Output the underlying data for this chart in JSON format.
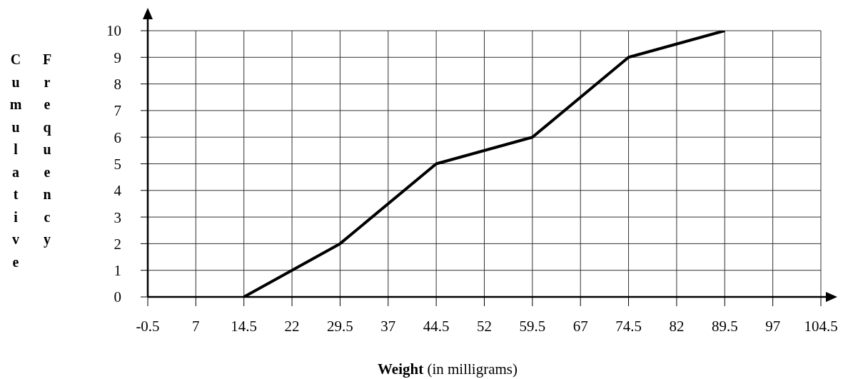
{
  "chart_data": {
    "type": "line",
    "xlabel": "Weight (in milligrams)",
    "ylabel": "Cumulative Frequency",
    "x": [
      14.5,
      29.5,
      44.5,
      59.5,
      74.5,
      89.5
    ],
    "series": [
      {
        "color": "#000000",
        "values": [
          0,
          2,
          5,
          6,
          9,
          10
        ]
      }
    ],
    "xlim": [
      -0.5,
      104.5
    ],
    "xticks": [
      -0.5,
      7,
      14.5,
      22,
      29.5,
      37,
      44.5,
      52,
      59.5,
      67,
      74.5,
      82,
      89.5,
      97,
      104.5
    ],
    "ylim": [
      0,
      10
    ],
    "yticks": [
      0,
      1,
      2,
      3,
      4,
      5,
      6,
      7,
      8,
      9,
      10
    ],
    "grid": true,
    "marker": "none",
    "line_style": "solid"
  }
}
